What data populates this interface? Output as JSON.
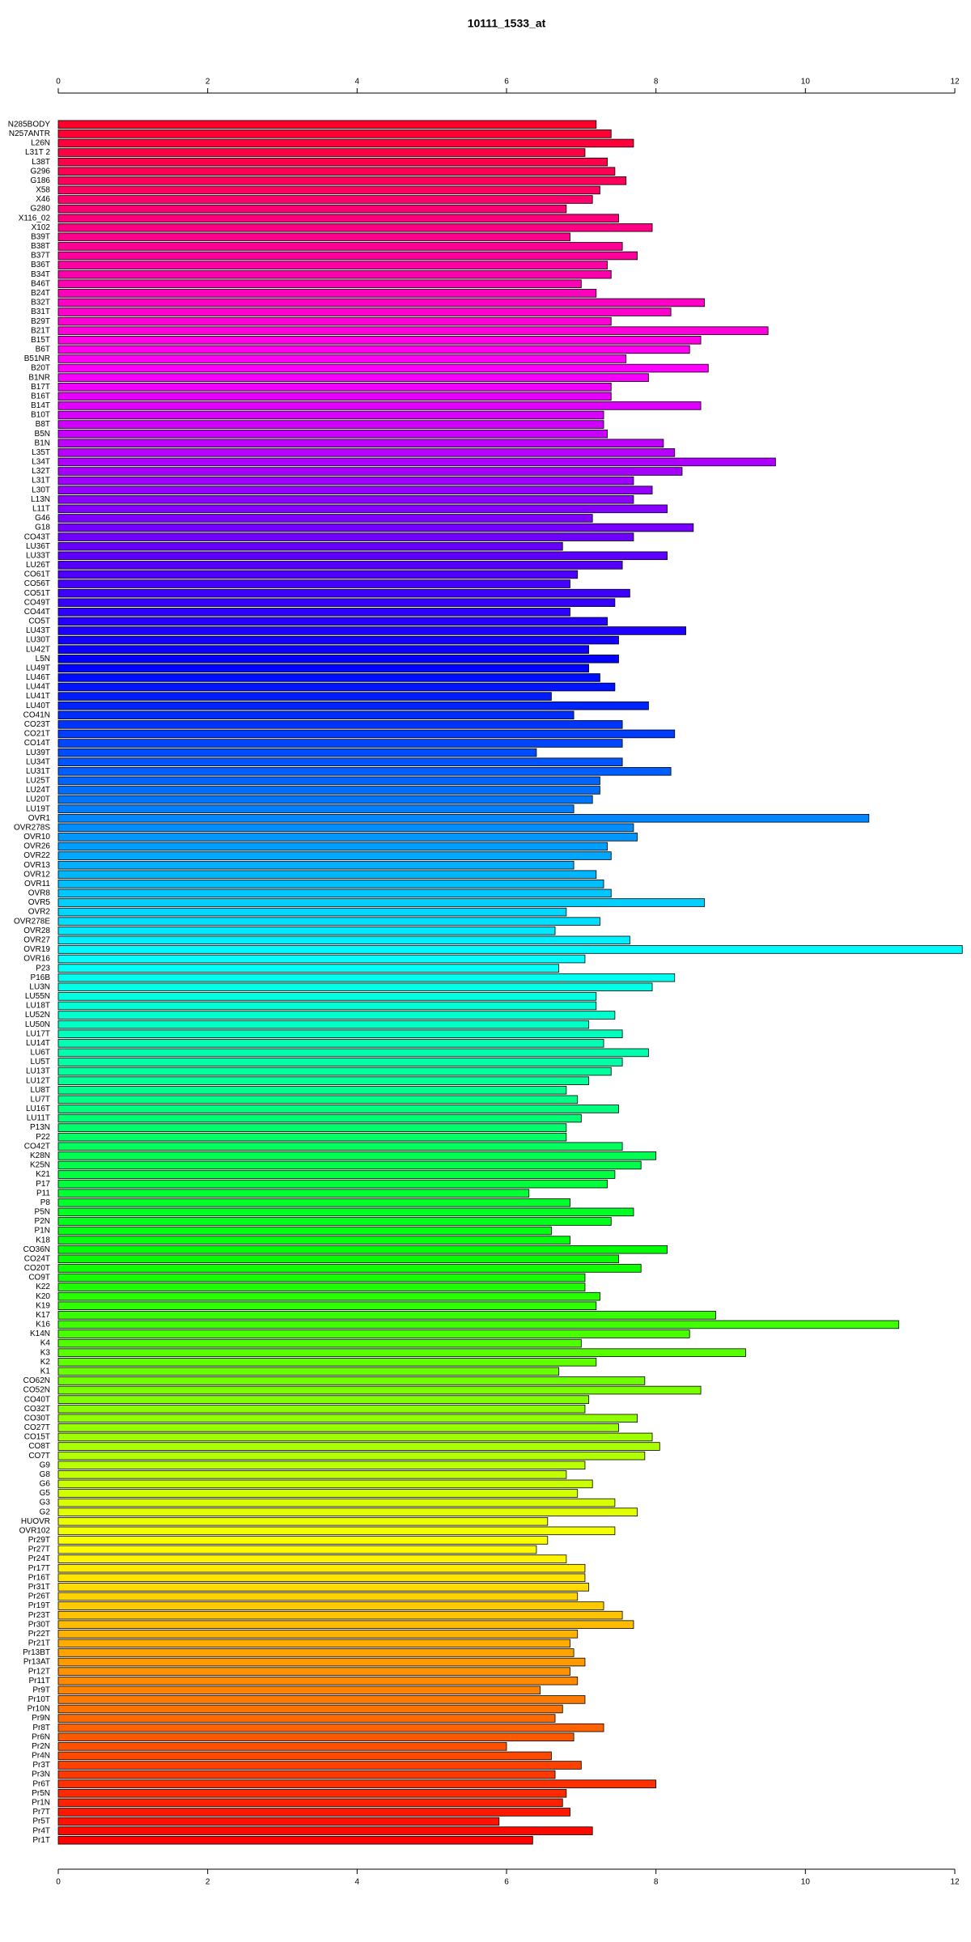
{
  "chart_data": {
    "type": "barh",
    "title": "10111_1533_at",
    "categories": [
      "N285BODY",
      "N257ANTR",
      "L26N",
      "L31T 2",
      "L38T",
      "G296",
      "G186",
      "X58",
      "X46",
      "G280",
      "X116_02",
      "X102",
      "B39T",
      "B38T",
      "B37T",
      "B36T",
      "B34T",
      "B46T",
      "B24T",
      "B32T",
      "B31T",
      "B29T",
      "B21T",
      "B15T",
      "B6T",
      "B51NR",
      "B20T",
      "B1NR",
      "B17T",
      "B16T",
      "B14T",
      "B10T",
      "B8T",
      "B5N",
      "B1N",
      "L35T",
      "L34T",
      "L32T",
      "L31T",
      "L30T",
      "L13N",
      "L11T",
      "G46",
      "G18",
      "CO43T",
      "LU36T",
      "LU33T",
      "LU26T",
      "CO61T",
      "CO56T",
      "CO51T",
      "CO49T",
      "CO44T",
      "CO5T",
      "LU43T",
      "LU30T",
      "LU42T",
      "L5N",
      "LU49T",
      "LU46T",
      "LU44T",
      "LU41T",
      "LU40T",
      "CO41N",
      "CO23T",
      "CO21T",
      "CO14T",
      "LU39T",
      "LU34T",
      "LU31T",
      "LU25T",
      "LU24T",
      "LU20T",
      "LU19T",
      "OVR1",
      "OVR278S",
      "OVR10",
      "OVR26",
      "OVR22",
      "OVR13",
      "OVR12",
      "OVR11",
      "OVR8",
      "OVR5",
      "OVR2",
      "OVR278E",
      "OVR28",
      "OVR27",
      "OVR19",
      "OVR16",
      "P23",
      "P16B",
      "LU3N",
      "LU55N",
      "LU18T",
      "LU52N",
      "LU50N",
      "LU17T",
      "LU14T",
      "LU6T",
      "LU5T",
      "LU13T",
      "LU12T",
      "LU8T",
      "LU7T",
      "LU16T",
      "LU11T",
      "P13N",
      "P22",
      "CO42T",
      "K28N",
      "K25N",
      "K21",
      "P17",
      "P11",
      "P8",
      "P5N",
      "P2N",
      "P1N",
      "K18",
      "CO36N",
      "CO24T",
      "CO20T",
      "CO9T",
      "K22",
      "K20",
      "K19",
      "K17",
      "K16",
      "K14N",
      "K4",
      "K3",
      "K2",
      "K1",
      "CO62N",
      "CO52N",
      "CO40T",
      "CO32T",
      "CO30T",
      "CO27T",
      "CO15T",
      "CO8T",
      "CO7T",
      "G9",
      "G8",
      "G6",
      "G5",
      "G3",
      "G2",
      "HUOVR",
      "OVR102",
      "Pr29T",
      "Pr27T",
      "Pr24T",
      "Pr17T",
      "Pr16T",
      "Pr31T",
      "Pr26T",
      "Pr19T",
      "Pr23T",
      "Pr30T",
      "Pr22T",
      "Pr21T",
      "Pr13BT",
      "Pr13AT",
      "Pr12T",
      "Pr11T",
      "Pr9T",
      "Pr10T",
      "Pr10N",
      "Pr9N",
      "Pr8T",
      "Pr6N",
      "Pr2N",
      "Pr4N",
      "Pr3T",
      "Pr3N",
      "Pr6T",
      "Pr5N",
      "Pr1N",
      "Pr7T",
      "Pr5T",
      "Pr4T",
      "Pr1T"
    ],
    "values": [
      7.2,
      7.4,
      7.7,
      7.05,
      7.35,
      7.45,
      7.6,
      7.25,
      7.15,
      6.8,
      7.5,
      7.95,
      6.85,
      7.55,
      7.75,
      7.35,
      7.4,
      7.0,
      7.2,
      8.65,
      8.2,
      7.4,
      9.5,
      8.6,
      8.45,
      7.6,
      8.7,
      7.9,
      7.4,
      7.4,
      8.6,
      7.3,
      7.3,
      7.35,
      8.1,
      8.25,
      9.6,
      8.35,
      7.7,
      7.95,
      7.7,
      8.15,
      7.15,
      8.5,
      7.7,
      6.75,
      8.15,
      7.55,
      6.95,
      6.85,
      7.65,
      7.45,
      6.85,
      7.35,
      8.4,
      7.5,
      7.1,
      7.5,
      7.1,
      7.25,
      7.45,
      6.6,
      7.9,
      6.9,
      7.55,
      8.25,
      7.55,
      6.4,
      7.55,
      8.2,
      7.25,
      7.25,
      7.15,
      6.9,
      10.85,
      7.7,
      7.75,
      7.35,
      7.4,
      6.9,
      7.2,
      7.3,
      7.4,
      8.65,
      6.8,
      7.25,
      6.65,
      7.65,
      12.1,
      7.05,
      6.7,
      8.25,
      7.95,
      7.2,
      7.2,
      7.45,
      7.1,
      7.55,
      7.3,
      7.9,
      7.55,
      7.4,
      7.1,
      6.8,
      6.95,
      7.5,
      7.0,
      6.8,
      6.8,
      7.55,
      8.0,
      7.8,
      7.45,
      7.35,
      6.3,
      6.85,
      7.7,
      7.4,
      6.6,
      6.85,
      8.15,
      7.5,
      7.8,
      7.05,
      7.05,
      7.25,
      7.2,
      8.8,
      11.25,
      8.45,
      7.0,
      9.2,
      7.2,
      6.7,
      7.85,
      8.6,
      7.1,
      7.05,
      7.75,
      7.5,
      7.95,
      8.05,
      7.85,
      7.05,
      6.8,
      7.15,
      6.95,
      7.45,
      7.75,
      6.55,
      7.45,
      6.55,
      6.4,
      6.8,
      7.05,
      7.05,
      7.1,
      6.95,
      7.3,
      7.55,
      7.7,
      6.95,
      6.85,
      6.9,
      7.05,
      6.85,
      6.95,
      6.45,
      7.05,
      6.75,
      6.65,
      7.3,
      6.9,
      6.0,
      6.6,
      7.0,
      6.65,
      8.0,
      6.8,
      6.75,
      6.85,
      5.9,
      7.15,
      6.35
    ],
    "color_hue_range": [
      350,
      0
    ],
    "xlim": [
      0,
      12
    ],
    "xticks": [
      0,
      2,
      4,
      6,
      8,
      10,
      12
    ]
  }
}
